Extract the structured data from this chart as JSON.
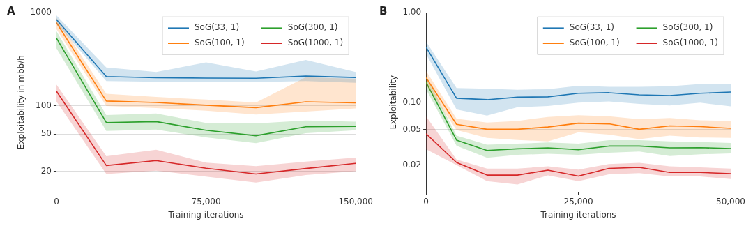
{
  "chart_data": [
    {
      "type": "line",
      "title": "A",
      "xlabel": "Training iterations",
      "ylabel": "Exploitability in mbb/h",
      "log": "y",
      "grid": "y",
      "legend": "top right",
      "marker": "none",
      "line_style": "solid",
      "x": [
        0,
        25000,
        50000,
        75000,
        100000,
        125000,
        150000
      ],
      "xlim": [
        0,
        150000
      ],
      "xticks": [
        0,
        {
          "value": 75000,
          "label": "75,000"
        },
        {
          "value": 150000,
          "label": "150,000"
        }
      ],
      "ylim": [
        12,
        1000
      ],
      "yticks": [
        20,
        50,
        100,
        1000
      ],
      "series": [
        {
          "name": "SoG(33, 1)",
          "color": "#1f77b4",
          "values": [
            845,
            207,
            201,
            199,
            198,
            209,
            202
          ],
          "lower": [
            770,
            185,
            182,
            180,
            180,
            185,
            177
          ],
          "upper": [
            935,
            259,
            231,
            293,
            234,
            312,
            231
          ]
        },
        {
          "name": "SoG(100, 1)",
          "color": "#ff7f0e",
          "values": [
            782,
            113,
            109,
            102,
            96,
            111,
            108
          ],
          "lower": [
            668,
            100,
            95,
            89,
            81,
            87,
            94
          ],
          "upper": [
            885,
            135,
            125,
            117,
            109,
            203,
            196
          ]
        },
        {
          "name": "SoG(300, 1)",
          "color": "#2ca02c",
          "values": [
            535,
            66.5,
            68,
            55,
            48,
            60,
            60.5
          ],
          "lower": [
            416,
            54,
            56,
            46,
            40,
            51,
            55
          ],
          "upper": [
            632,
            80,
            83,
            66,
            65,
            70,
            68
          ]
        },
        {
          "name": "SoG(1000, 1)",
          "color": "#d62728",
          "values": [
            144,
            23,
            26,
            21.5,
            18.7,
            21.4,
            24.3
          ],
          "lower": [
            112,
            18.7,
            20.3,
            17.5,
            15.1,
            18.2,
            20
          ],
          "upper": [
            170,
            29,
            34,
            24.7,
            22.7,
            25.4,
            28
          ]
        }
      ]
    },
    {
      "type": "line",
      "title": "B",
      "xlabel": "Training iterations",
      "ylabel": "Exploitability",
      "log": "y",
      "grid": "y",
      "legend": "top right",
      "marker": "none",
      "line_style": "solid",
      "x": [
        0,
        5000,
        10000,
        15000,
        20000,
        25000,
        30000,
        35000,
        40000,
        45000,
        50000
      ],
      "xlim": [
        0,
        50000
      ],
      "xticks": [
        0,
        {
          "value": 25000,
          "label": "25,000"
        },
        {
          "value": 50000,
          "label": "50,000"
        }
      ],
      "ylim": [
        0.01,
        1
      ],
      "yticks": [
        0.02,
        0.05,
        {
          "value": 0.1,
          "label": "0.10"
        },
        {
          "value": 1,
          "label": "1.00"
        }
      ],
      "series": [
        {
          "name": "SoG(33, 1)",
          "color": "#1f77b4",
          "values": [
            0.412,
            0.111,
            0.107,
            0.114,
            0.115,
            0.126,
            0.128,
            0.121,
            0.119,
            0.126,
            0.13
          ],
          "lower": [
            0.346,
            0.083,
            0.071,
            0.088,
            0.091,
            0.099,
            0.102,
            0.096,
            0.092,
            0.099,
            0.09
          ],
          "upper": [
            0.476,
            0.144,
            0.142,
            0.138,
            0.14,
            0.153,
            0.149,
            0.149,
            0.151,
            0.16,
            0.16
          ]
        },
        {
          "name": "SoG(100, 1)",
          "color": "#ff7f0e",
          "values": [
            0.188,
            0.0568,
            0.05,
            0.05,
            0.053,
            0.0585,
            0.0575,
            0.05,
            0.0545,
            0.0536,
            0.0512
          ],
          "lower": [
            0.157,
            0.049,
            0.04,
            0.038,
            0.0367,
            0.0463,
            0.0437,
            0.0389,
            0.0425,
            0.0405,
            0.04
          ],
          "upper": [
            0.224,
            0.0657,
            0.0595,
            0.062,
            0.0685,
            0.0718,
            0.0697,
            0.0646,
            0.0669,
            0.0631,
            0.062
          ]
        },
        {
          "name": "SoG(300, 1)",
          "color": "#2ca02c",
          "values": [
            0.167,
            0.0378,
            0.029,
            0.0303,
            0.031,
            0.0296,
            0.0325,
            0.0325,
            0.031,
            0.0312,
            0.0305
          ],
          "lower": [
            0.14,
            0.0327,
            0.024,
            0.0259,
            0.0266,
            0.0259,
            0.0274,
            0.0282,
            0.0251,
            0.0263,
            0.0269
          ],
          "upper": [
            0.199,
            0.0425,
            0.0336,
            0.0346,
            0.0356,
            0.0346,
            0.0378,
            0.0378,
            0.0367,
            0.036,
            0.0352
          ]
        },
        {
          "name": "SoG(1000, 1)",
          "color": "#d62728",
          "values": [
            0.0445,
            0.0213,
            0.0154,
            0.0154,
            0.0175,
            0.015,
            0.0183,
            0.0188,
            0.0165,
            0.0165,
            0.016
          ],
          "lower": [
            0.03,
            0.0199,
            0.0132,
            0.0121,
            0.0153,
            0.0132,
            0.0157,
            0.0162,
            0.0149,
            0.0149,
            0.0139
          ],
          "upper": [
            0.0697,
            0.023,
            0.0182,
            0.0182,
            0.0193,
            0.0177,
            0.0205,
            0.0211,
            0.0193,
            0.0188,
            0.0182
          ]
        }
      ]
    }
  ]
}
